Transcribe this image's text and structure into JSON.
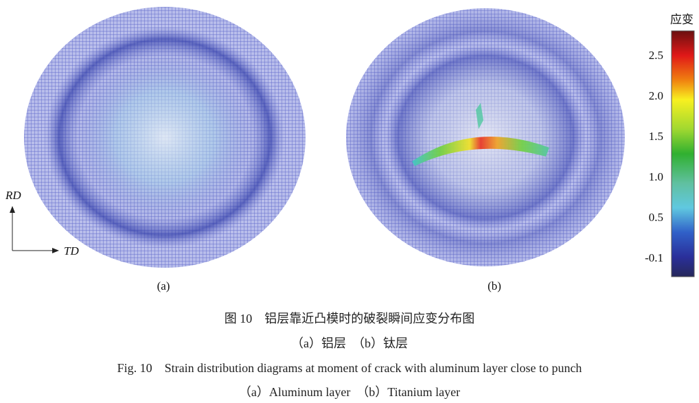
{
  "figure": {
    "panels": [
      {
        "label": "(a)"
      },
      {
        "label": "(b)"
      }
    ],
    "axes": {
      "rd": "RD",
      "td": "TD"
    },
    "colorbar": {
      "title": "应变",
      "tick_labels": [
        "2.5",
        "2.0",
        "1.5",
        "1.0",
        "0.5",
        "-0.1"
      ]
    },
    "caption": {
      "zh_title": "图 10　铝层靠近凸模时的破裂瞬间应变分布图",
      "zh_sub": "（a）铝层　（b）钛层",
      "en_title": "Fig. 10　Strain distribution diagrams at moment of crack with aluminum layer close to punch",
      "en_sub": "（a）Aluminum layer　（b）Titanium layer"
    }
  }
}
